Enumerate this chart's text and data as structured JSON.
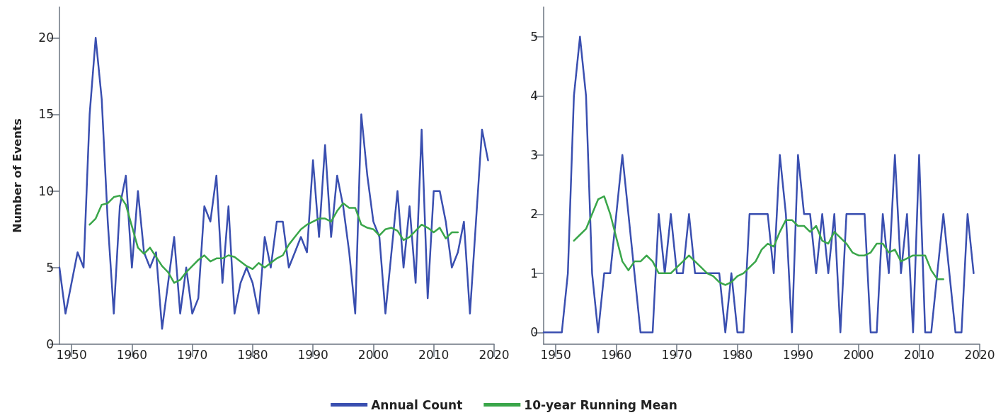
{
  "chart_data": [
    {
      "type": "line",
      "ylabel": "Number of Events",
      "legend": "bottom",
      "grid": false,
      "marker": "none",
      "line_style": "solid",
      "xlim": [
        1948,
        2020
      ],
      "xticks": [
        1950,
        1960,
        1970,
        1980,
        1990,
        2000,
        2010,
        2020
      ],
      "ylim": [
        0,
        22
      ],
      "yticks": [
        0,
        5,
        10,
        15,
        20
      ],
      "series": [
        {
          "name": "Annual Count",
          "color": "#3a4fb0",
          "x": [
            1948,
            1949,
            1950,
            1951,
            1952,
            1953,
            1954,
            1955,
            1956,
            1957,
            1958,
            1959,
            1960,
            1961,
            1962,
            1963,
            1964,
            1965,
            1966,
            1967,
            1968,
            1969,
            1970,
            1971,
            1972,
            1973,
            1974,
            1975,
            1976,
            1977,
            1978,
            1979,
            1980,
            1981,
            1982,
            1983,
            1984,
            1985,
            1986,
            1987,
            1988,
            1989,
            1990,
            1991,
            1992,
            1993,
            1994,
            1995,
            1996,
            1997,
            1998,
            1999,
            2000,
            2001,
            2002,
            2003,
            2004,
            2005,
            2006,
            2007,
            2008,
            2009,
            2010,
            2011,
            2012,
            2013,
            2014,
            2015,
            2016,
            2017,
            2018,
            2019
          ],
          "values": [
            5,
            2,
            4,
            6,
            5,
            15,
            20,
            16,
            8,
            2,
            9,
            11,
            5,
            10,
            6,
            5,
            6,
            1,
            4,
            7,
            2,
            5,
            2,
            3,
            9,
            8,
            11,
            4,
            9,
            2,
            4,
            5,
            4,
            2,
            7,
            5,
            8,
            8,
            5,
            6,
            7,
            6,
            12,
            7,
            13,
            7,
            11,
            9,
            6,
            2,
            15,
            11,
            8,
            7,
            2,
            6,
            10,
            5,
            9,
            4,
            14,
            3,
            10,
            10,
            8,
            5,
            6,
            8,
            2,
            8,
            14,
            12
          ]
        },
        {
          "name": "10-year Running Mean",
          "color": "#3aa64a",
          "x": [
            1953,
            1954,
            1955,
            1956,
            1957,
            1958,
            1959,
            1960,
            1961,
            1962,
            1963,
            1964,
            1965,
            1966,
            1967,
            1968,
            1969,
            1970,
            1971,
            1972,
            1973,
            1974,
            1975,
            1976,
            1977,
            1978,
            1979,
            1980,
            1981,
            1982,
            1983,
            1984,
            1985,
            1986,
            1987,
            1988,
            1989,
            1990,
            1991,
            1992,
            1993,
            1994,
            1995,
            1996,
            1997,
            1998,
            1999,
            2000,
            2001,
            2002,
            2003,
            2004,
            2005,
            2006,
            2007,
            2008,
            2009,
            2010,
            2011,
            2012,
            2013,
            2014
          ],
          "values": [
            7.8,
            8.2,
            9.1,
            9.2,
            9.6,
            9.7,
            9.1,
            7.7,
            6.3,
            5.9,
            6.3,
            5.7,
            5.1,
            4.7,
            4.0,
            4.2,
            4.7,
            5.1,
            5.5,
            5.8,
            5.4,
            5.6,
            5.6,
            5.8,
            5.7,
            5.4,
            5.1,
            4.9,
            5.3,
            5.0,
            5.3,
            5.6,
            5.8,
            6.5,
            7.0,
            7.5,
            7.8,
            8.0,
            8.2,
            8.2,
            8.0,
            8.7,
            9.2,
            8.9,
            8.9,
            7.8,
            7.6,
            7.5,
            7.1,
            7.5,
            7.6,
            7.4,
            6.8,
            7.0,
            7.4,
            7.8,
            7.6,
            7.3,
            7.6,
            6.9,
            7.3,
            7.3
          ]
        }
      ]
    },
    {
      "type": "line",
      "grid": false,
      "marker": "none",
      "line_style": "solid",
      "xlim": [
        1948,
        2020
      ],
      "xticks": [
        1950,
        1960,
        1970,
        1980,
        1990,
        2000,
        2010,
        2020
      ],
      "ylim": [
        -0.2,
        5.5
      ],
      "yticks": [
        0,
        1,
        2,
        3,
        4,
        5
      ],
      "series": [
        {
          "color": "#3a4fb0",
          "x": [
            1948,
            1949,
            1950,
            1951,
            1952,
            1953,
            1954,
            1955,
            1956,
            1957,
            1958,
            1959,
            1960,
            1961,
            1962,
            1963,
            1964,
            1965,
            1966,
            1967,
            1968,
            1969,
            1970,
            1971,
            1972,
            1973,
            1974,
            1975,
            1976,
            1977,
            1978,
            1979,
            1980,
            1981,
            1982,
            1983,
            1984,
            1985,
            1986,
            1987,
            1988,
            1989,
            1990,
            1991,
            1992,
            1993,
            1994,
            1995,
            1996,
            1997,
            1998,
            1999,
            2000,
            2001,
            2002,
            2003,
            2004,
            2005,
            2006,
            2007,
            2008,
            2009,
            2010,
            2011,
            2012,
            2013,
            2014,
            2015,
            2016,
            2017,
            2018,
            2019
          ],
          "values": [
            0,
            0,
            0,
            0,
            1,
            4,
            5,
            4,
            1,
            0,
            1,
            1,
            2,
            3,
            2,
            1,
            0,
            0,
            0,
            2,
            1,
            2,
            1,
            1,
            2,
            1,
            1,
            1,
            1,
            1,
            0,
            1,
            0,
            0,
            2,
            2,
            2,
            2,
            1,
            3,
            2,
            0,
            3,
            2,
            2,
            1,
            2,
            1,
            2,
            0,
            2,
            2,
            2,
            2,
            0,
            0,
            2,
            1,
            3,
            1,
            2,
            0,
            3,
            0,
            0,
            1,
            2,
            1,
            0,
            0,
            2,
            1
          ]
        },
        {
          "color": "#3aa64a",
          "x": [
            1953,
            1954,
            1955,
            1956,
            1957,
            1958,
            1959,
            1960,
            1961,
            1962,
            1963,
            1964,
            1965,
            1966,
            1967,
            1968,
            1969,
            1970,
            1971,
            1972,
            1973,
            1974,
            1975,
            1976,
            1977,
            1978,
            1979,
            1980,
            1981,
            1982,
            1983,
            1984,
            1985,
            1986,
            1987,
            1988,
            1989,
            1990,
            1991,
            1992,
            1993,
            1994,
            1995,
            1996,
            1997,
            1998,
            1999,
            2000,
            2001,
            2002,
            2003,
            2004,
            2005,
            2006,
            2007,
            2008,
            2009,
            2010,
            2011,
            2012,
            2013,
            2014
          ],
          "values": [
            1.55,
            1.65,
            1.75,
            2.0,
            2.25,
            2.3,
            2.0,
            1.6,
            1.2,
            1.05,
            1.2,
            1.2,
            1.3,
            1.2,
            1.0,
            1.0,
            1.0,
            1.1,
            1.2,
            1.3,
            1.2,
            1.1,
            1.0,
            0.95,
            0.85,
            0.8,
            0.85,
            0.95,
            1.0,
            1.1,
            1.2,
            1.4,
            1.5,
            1.45,
            1.7,
            1.9,
            1.9,
            1.8,
            1.8,
            1.7,
            1.8,
            1.55,
            1.5,
            1.7,
            1.6,
            1.5,
            1.35,
            1.3,
            1.3,
            1.35,
            1.5,
            1.5,
            1.35,
            1.4,
            1.2,
            1.25,
            1.3,
            1.3,
            1.3,
            1.05,
            0.9,
            0.9
          ]
        }
      ]
    }
  ]
}
